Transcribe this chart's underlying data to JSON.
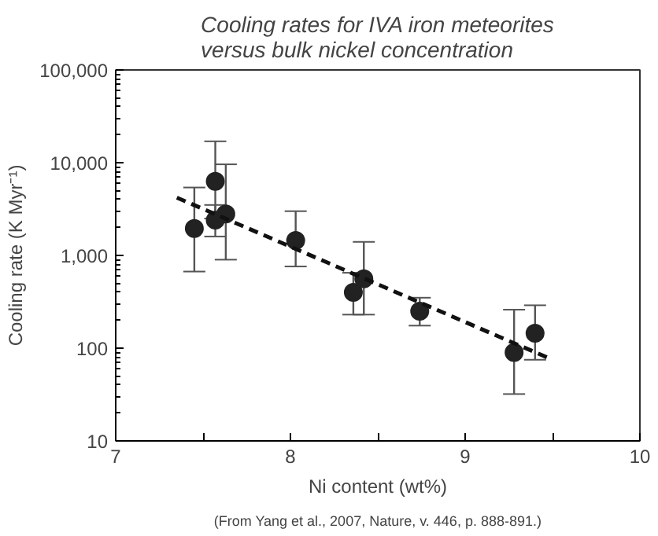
{
  "chart_data": {
    "type": "scatter",
    "title": "Cooling rates for IVA iron meteorites\nversus bulk nickel concentration",
    "xlabel": "Ni content (wt%)",
    "ylabel": "Cooling rate (K Myr⁻¹)",
    "annotations": [
      "(From Yang et al., 2007, Nature, v. 446, p. 888-891.)"
    ],
    "log": "y",
    "xlim": [
      7,
      10
    ],
    "ylim": [
      10,
      100000
    ],
    "xticks": [
      7,
      {
        "value": 7.5,
        "label": null
      },
      8,
      {
        "value": 8.5,
        "label": null
      },
      9,
      {
        "value": 9.5,
        "label": null
      },
      10
    ],
    "yticks": [
      {
        "value": 10,
        "label": "10"
      },
      {
        "value": 100,
        "label": "100"
      },
      {
        "value": 1000,
        "label": "1,000"
      },
      {
        "value": 10000,
        "label": "10,000"
      },
      {
        "value": 100000,
        "label": "100,000"
      }
    ],
    "grid": false,
    "marker": "circle",
    "series": [
      {
        "color": "#222222",
        "x": [
          7.45,
          7.57,
          7.57,
          7.63,
          8.03,
          8.36,
          8.42,
          8.74,
          9.28,
          9.4
        ],
        "values": [
          1950,
          6300,
          2400,
          2800,
          1450,
          400,
          560,
          250,
          90,
          145
        ],
        "errors": [
          [
            670,
            5400
          ],
          [
            2500,
            17000
          ],
          [
            1600,
            3500
          ],
          [
            900,
            9600
          ],
          [
            760,
            3000
          ],
          [
            230,
            650
          ],
          [
            230,
            1400
          ],
          [
            175,
            350
          ],
          [
            32,
            260
          ],
          [
            75,
            290
          ]
        ]
      },
      {
        "type": "line",
        "marker": "none",
        "color": "#111111",
        "line_style": "dashed",
        "x": [
          7.35,
          9.5
        ],
        "values": [
          4200,
          75
        ]
      }
    ]
  }
}
